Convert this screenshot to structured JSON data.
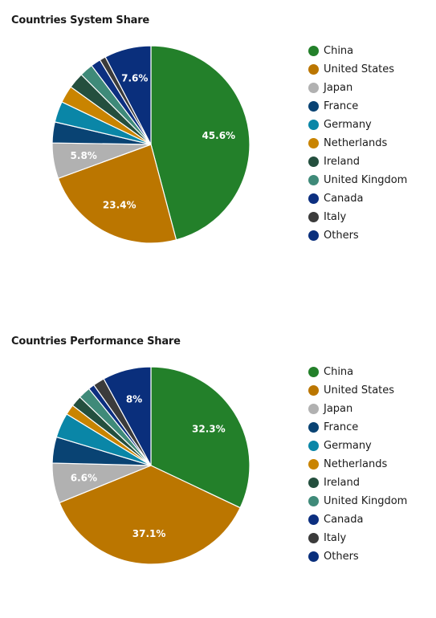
{
  "chart_data": [
    {
      "type": "pie",
      "title": "Countries System Share",
      "categories": [
        "China",
        "United States",
        "Japan",
        "France",
        "Germany",
        "Netherlands",
        "Ireland",
        "United Kingdom",
        "Canada",
        "Italy",
        "Others"
      ],
      "values": [
        45.6,
        23.4,
        5.8,
        3.4,
        3.4,
        2.8,
        2.6,
        2.2,
        1.6,
        1.0,
        7.6
      ],
      "colors": [
        "#23802a",
        "#bb7600",
        "#b1b1b1",
        "#094373",
        "#0a86a7",
        "#c98400",
        "#244f3e",
        "#3f8a79",
        "#0c2f80",
        "#3b3b3b",
        "#0a2f7c"
      ],
      "data_labels": [
        "45.6%",
        "23.4%",
        "5.8%",
        "",
        "",
        "",
        "",
        "",
        "",
        "",
        "7.6%"
      ],
      "legend": "right"
    },
    {
      "type": "pie",
      "title": "Countries Performance Share",
      "categories": [
        "China",
        "United States",
        "Japan",
        "France",
        "Germany",
        "Netherlands",
        "Ireland",
        "United Kingdom",
        "Canada",
        "Italy",
        "Others"
      ],
      "values": [
        32.3,
        37.1,
        6.6,
        4.3,
        4.1,
        1.7,
        1.8,
        2.0,
        1.0,
        1.9,
        8.0
      ],
      "colors": [
        "#23802a",
        "#bb7600",
        "#b1b1b1",
        "#094373",
        "#0a86a7",
        "#c98400",
        "#244f3e",
        "#3f8a79",
        "#0c2f80",
        "#3b3b3b",
        "#0a2f7c"
      ],
      "data_labels": [
        "32.3%",
        "37.1%",
        "6.6%",
        "",
        "",
        "",
        "",
        "",
        "",
        "",
        "8%"
      ],
      "legend": "right"
    }
  ]
}
